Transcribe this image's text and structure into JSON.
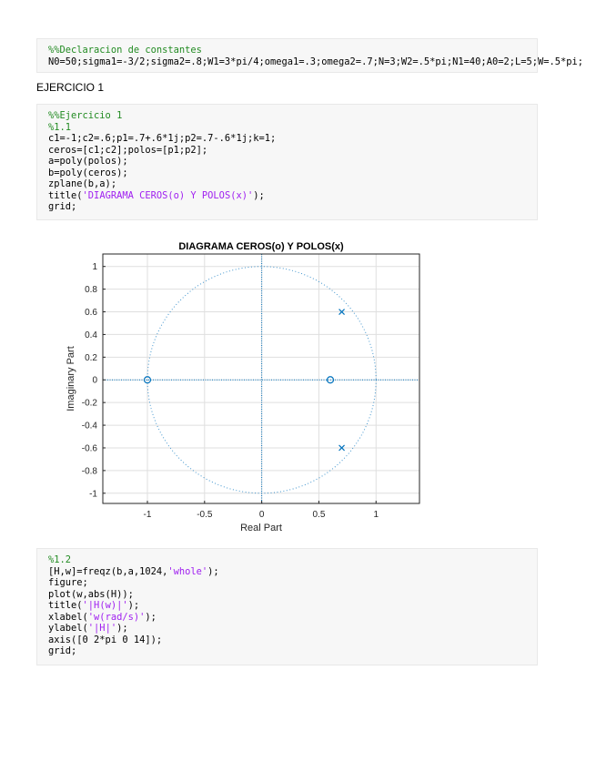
{
  "blocks": [
    {
      "lines": [
        [
          {
            "t": "%%Declaracion de constantes",
            "c": "cm"
          }
        ],
        [
          {
            "t": "N0=50;sigma1=-3/2;sigma2=.8;W1=3*pi/4;omega1=.3;omega2=.7;N=3;W2=.5*pi;N1=40;A0=2;L=5;W=.5*pi;",
            "c": ""
          }
        ]
      ]
    },
    {
      "lines": [
        [
          {
            "t": "%%Ejercicio 1",
            "c": "cm"
          }
        ],
        [
          {
            "t": "%1.1",
            "c": "cm"
          }
        ],
        [
          {
            "t": "c1=-1;c2=.6;p1=.7+.6*1j;p2=.7-.6*1j;k=1;",
            "c": ""
          }
        ],
        [
          {
            "t": "ceros=[c1;c2];polos=[p1;p2];",
            "c": ""
          }
        ],
        [
          {
            "t": "a=poly(polos);",
            "c": ""
          }
        ],
        [
          {
            "t": "b=poly(ceros);",
            "c": ""
          }
        ],
        [
          {
            "t": "zplane(b,a);",
            "c": ""
          }
        ],
        [
          {
            "t": "title(",
            "c": ""
          },
          {
            "t": "'DIAGRAMA CEROS(o) Y POLOS(x)'",
            "c": "str"
          },
          {
            "t": ");",
            "c": ""
          }
        ],
        [
          {
            "t": "grid;",
            "c": ""
          }
        ]
      ]
    },
    {
      "lines": [
        [
          {
            "t": "%1.2",
            "c": "cm"
          }
        ],
        [
          {
            "t": "[H,w]=freqz(b,a,1024,",
            "c": ""
          },
          {
            "t": "'whole'",
            "c": "str"
          },
          {
            "t": ");",
            "c": ""
          }
        ],
        [
          {
            "t": "figure;",
            "c": ""
          }
        ],
        [
          {
            "t": "plot(w,abs(H));",
            "c": ""
          }
        ],
        [
          {
            "t": "title(",
            "c": ""
          },
          {
            "t": "'|H(w)|'",
            "c": "str"
          },
          {
            "t": ");",
            "c": ""
          }
        ],
        [
          {
            "t": "xlabel(",
            "c": ""
          },
          {
            "t": "'w(rad/s)'",
            "c": "str"
          },
          {
            "t": ");",
            "c": ""
          }
        ],
        [
          {
            "t": "ylabel(",
            "c": ""
          },
          {
            "t": "'|H|'",
            "c": "str"
          },
          {
            "t": ");",
            "c": ""
          }
        ],
        [
          {
            "t": "axis([0 2*pi 0 14]);",
            "c": ""
          }
        ],
        [
          {
            "t": "grid;",
            "c": ""
          }
        ]
      ]
    }
  ],
  "section_heading": "EJERCICIO 1",
  "colors": {
    "comment": "#228b22",
    "string": "#a020f0",
    "marker": "#0072bd"
  },
  "chart_data": {
    "type": "scatter",
    "title": "DIAGRAMA CEROS(o) Y POLOS(x)",
    "xlabel": "Real Part",
    "ylabel": "Imaginary Part",
    "xlim": [
      -1.39,
      1.38
    ],
    "ylim": [
      -1.09,
      1.11
    ],
    "xticks": [
      "-1",
      "-0.5",
      "0",
      "0.5",
      "1"
    ],
    "xtick_values": [
      -1,
      -0.5,
      0,
      0.5,
      1
    ],
    "yticks": [
      "-1",
      "-0.8",
      "-0.6",
      "-0.4",
      "-0.2",
      "0",
      "0.2",
      "0.4",
      "0.6",
      "0.8",
      "1"
    ],
    "ytick_values": [
      -1,
      -0.8,
      -0.6,
      -0.4,
      -0.2,
      0,
      0.2,
      0.4,
      0.6,
      0.8,
      1
    ],
    "grid": true,
    "unit_circle": true,
    "zeros": [
      {
        "re": -1,
        "im": 0
      },
      {
        "re": 0.6,
        "im": 0
      }
    ],
    "poles": [
      {
        "re": 0.7,
        "im": 0.6
      },
      {
        "re": 0.7,
        "im": -0.6
      }
    ]
  }
}
